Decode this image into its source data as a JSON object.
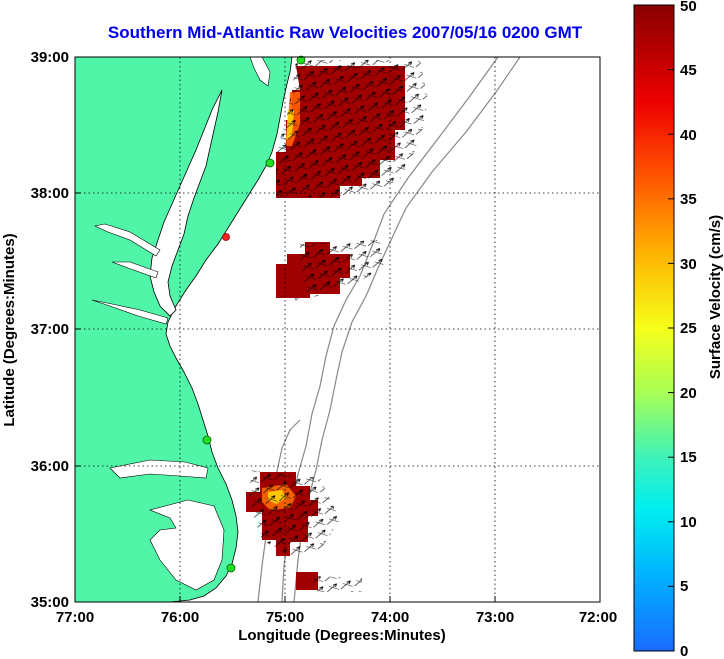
{
  "title": "Southern Mid-Atlantic Raw Velocities 2007/05/16 0200 GMT",
  "xlabel": "Longitude (Degrees:Minutes)",
  "ylabel": "Latitude (Degrees:Minutes)",
  "x_ticks": [
    "77:00",
    "76:00",
    "75:00",
    "74:00",
    "73:00",
    "72:00"
  ],
  "y_ticks": [
    "39:00",
    "38:00",
    "37:00",
    "36:00",
    "35:00"
  ],
  "colorbar": {
    "label": "Surface Velocity (cm/s)",
    "ticks": [
      "50",
      "45",
      "40",
      "35",
      "30",
      "25",
      "20",
      "15",
      "10",
      "5",
      "0"
    ],
    "range": [
      0,
      50
    ]
  },
  "colors": {
    "land": "#50f5a8",
    "water": "#ffffff",
    "title": "#0000ee",
    "bathymetry": "#888888",
    "station": "#22dd22",
    "station_alt": "#ff2222"
  },
  "map": {
    "lon_range": [
      -77,
      -72
    ],
    "lat_range": [
      35,
      39
    ],
    "grid": "dotted",
    "stations": [
      {
        "lon": -74.9,
        "lat": 39.0,
        "status": "active"
      },
      {
        "lon": -75.15,
        "lat": 38.22,
        "status": "active"
      },
      {
        "lon": -75.55,
        "lat": 37.7,
        "status": "offline"
      },
      {
        "lon": -75.72,
        "lat": 36.18,
        "status": "active"
      },
      {
        "lon": -75.5,
        "lat": 35.25,
        "status": "active"
      }
    ],
    "velocity_patches": [
      {
        "region": "northern",
        "lon": [
          -75.1,
          -74.05
        ],
        "lat": [
          37.95,
          38.95
        ],
        "speed_cms": 48
      },
      {
        "region": "central",
        "lon": [
          -75.1,
          -74.5
        ],
        "lat": [
          37.2,
          37.55
        ],
        "speed_cms": 48
      },
      {
        "region": "southern",
        "lon": [
          -75.4,
          -74.75
        ],
        "lat": [
          35.5,
          35.95
        ],
        "speed_cms": 46
      },
      {
        "region": "southern_tip",
        "lon": [
          -74.9,
          -74.75
        ],
        "lat": [
          35.07,
          35.22
        ],
        "speed_cms": 48
      }
    ]
  }
}
